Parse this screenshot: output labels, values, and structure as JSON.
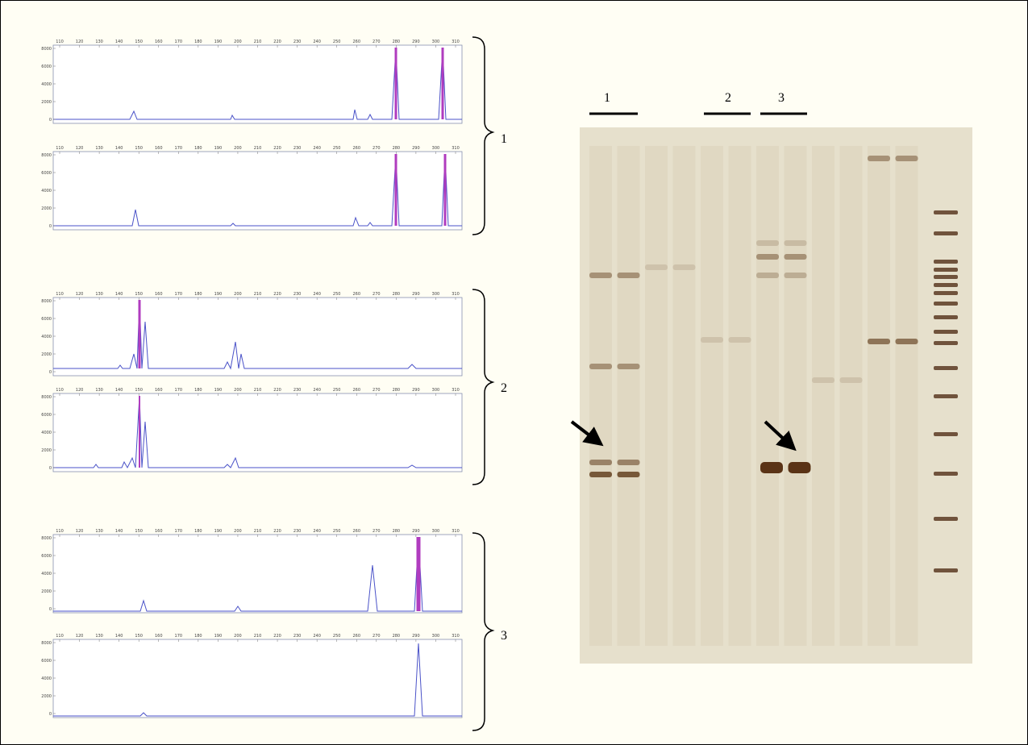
{
  "group_labels": [
    "1",
    "2",
    "3"
  ],
  "lane_labels": [
    "1",
    "2",
    "3"
  ],
  "electropherogram": {
    "x_ticks": [
      110,
      120,
      130,
      140,
      150,
      160,
      170,
      180,
      190,
      200,
      210,
      220,
      230,
      240,
      250,
      260,
      270,
      280,
      290,
      300,
      310
    ],
    "y_ticks": [
      0,
      2000,
      4000,
      6000,
      8000
    ]
  }
}
